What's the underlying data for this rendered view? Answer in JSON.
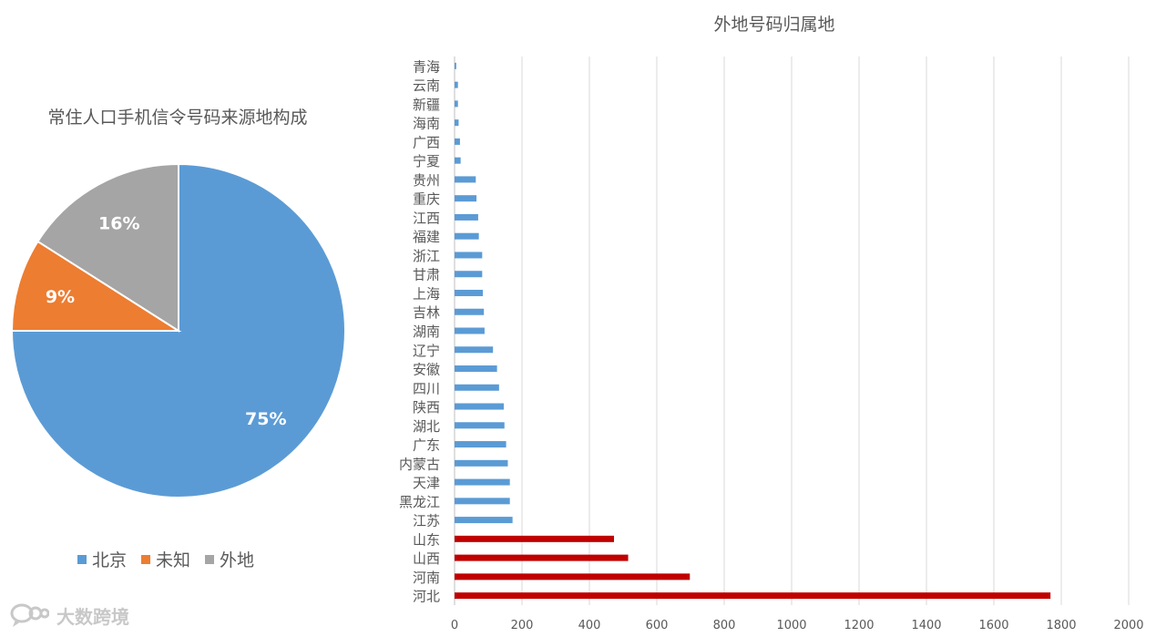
{
  "chart_data": [
    {
      "type": "pie",
      "title": "常住人口手机信令号码来源地构成",
      "slices": [
        {
          "name": "北京",
          "value": 75,
          "label": "75%",
          "color": "#5b9bd5"
        },
        {
          "name": "未知",
          "value": 9,
          "label": "9%",
          "color": "#ed7d31"
        },
        {
          "name": "外地",
          "value": 16,
          "label": "16%",
          "color": "#a5a5a5"
        }
      ],
      "legend": "bottom"
    },
    {
      "type": "bar",
      "orientation": "horizontal",
      "title": "外地号码归属地",
      "categories": [
        "青海",
        "云南",
        "新疆",
        "海南",
        "广西",
        "宁夏",
        "贵州",
        "重庆",
        "江西",
        "福建",
        "浙江",
        "甘肃",
        "上海",
        "吉林",
        "湖南",
        "辽宁",
        "安徽",
        "四川",
        "陕西",
        "湖北",
        "广东",
        "内蒙古",
        "天津",
        "黑龙江",
        "江苏",
        "山东",
        "山西",
        "河南",
        "河北"
      ],
      "values": [
        5,
        10,
        10,
        12,
        16,
        18,
        63,
        65,
        70,
        72,
        82,
        82,
        84,
        87,
        89,
        114,
        126,
        132,
        146,
        148,
        153,
        158,
        164,
        164,
        172,
        473,
        515,
        698,
        1768
      ],
      "colors": [
        "#5b9bd5",
        "#5b9bd5",
        "#5b9bd5",
        "#5b9bd5",
        "#5b9bd5",
        "#5b9bd5",
        "#5b9bd5",
        "#5b9bd5",
        "#5b9bd5",
        "#5b9bd5",
        "#5b9bd5",
        "#5b9bd5",
        "#5b9bd5",
        "#5b9bd5",
        "#5b9bd5",
        "#5b9bd5",
        "#5b9bd5",
        "#5b9bd5",
        "#5b9bd5",
        "#5b9bd5",
        "#5b9bd5",
        "#5b9bd5",
        "#5b9bd5",
        "#5b9bd5",
        "#5b9bd5",
        "#c00000",
        "#c00000",
        "#c00000",
        "#c00000"
      ],
      "xlim": [
        0,
        2000
      ],
      "xticks": [
        0,
        200,
        400,
        600,
        800,
        1000,
        1200,
        1400,
        1600,
        1800,
        2000
      ],
      "grid": true
    }
  ],
  "watermark": {
    "text": "大数跨境",
    "logo_icon": "chat-bubble-logo"
  }
}
